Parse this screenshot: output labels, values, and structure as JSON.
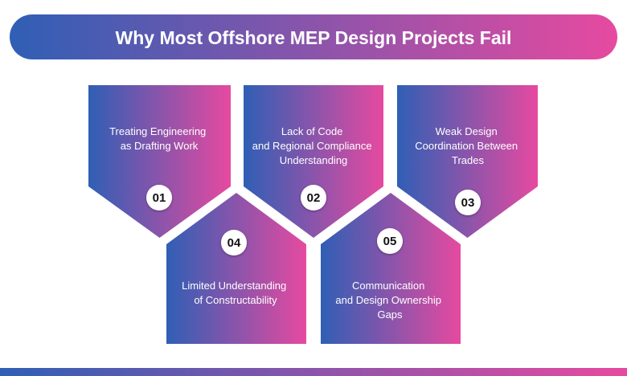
{
  "title": "Why Most Offshore MEP Design Projects Fail",
  "colors": {
    "gradient_start": "#2f5fb5",
    "gradient_end": "#e64aa0",
    "number_text": "#111111"
  },
  "items": [
    {
      "number": "01",
      "lines": [
        "Treating Engineering",
        "as Drafting Work"
      ]
    },
    {
      "number": "02",
      "lines": [
        "Lack of Code",
        "and Regional Compliance",
        "Understanding"
      ]
    },
    {
      "number": "03",
      "lines": [
        "Weak Design",
        "Coordination Between",
        "Trades"
      ]
    },
    {
      "number": "04",
      "lines": [
        "Limited Understanding",
        "of Constructability"
      ]
    },
    {
      "number": "05",
      "lines": [
        "Communication",
        "and Design Ownership",
        "Gaps"
      ]
    }
  ]
}
